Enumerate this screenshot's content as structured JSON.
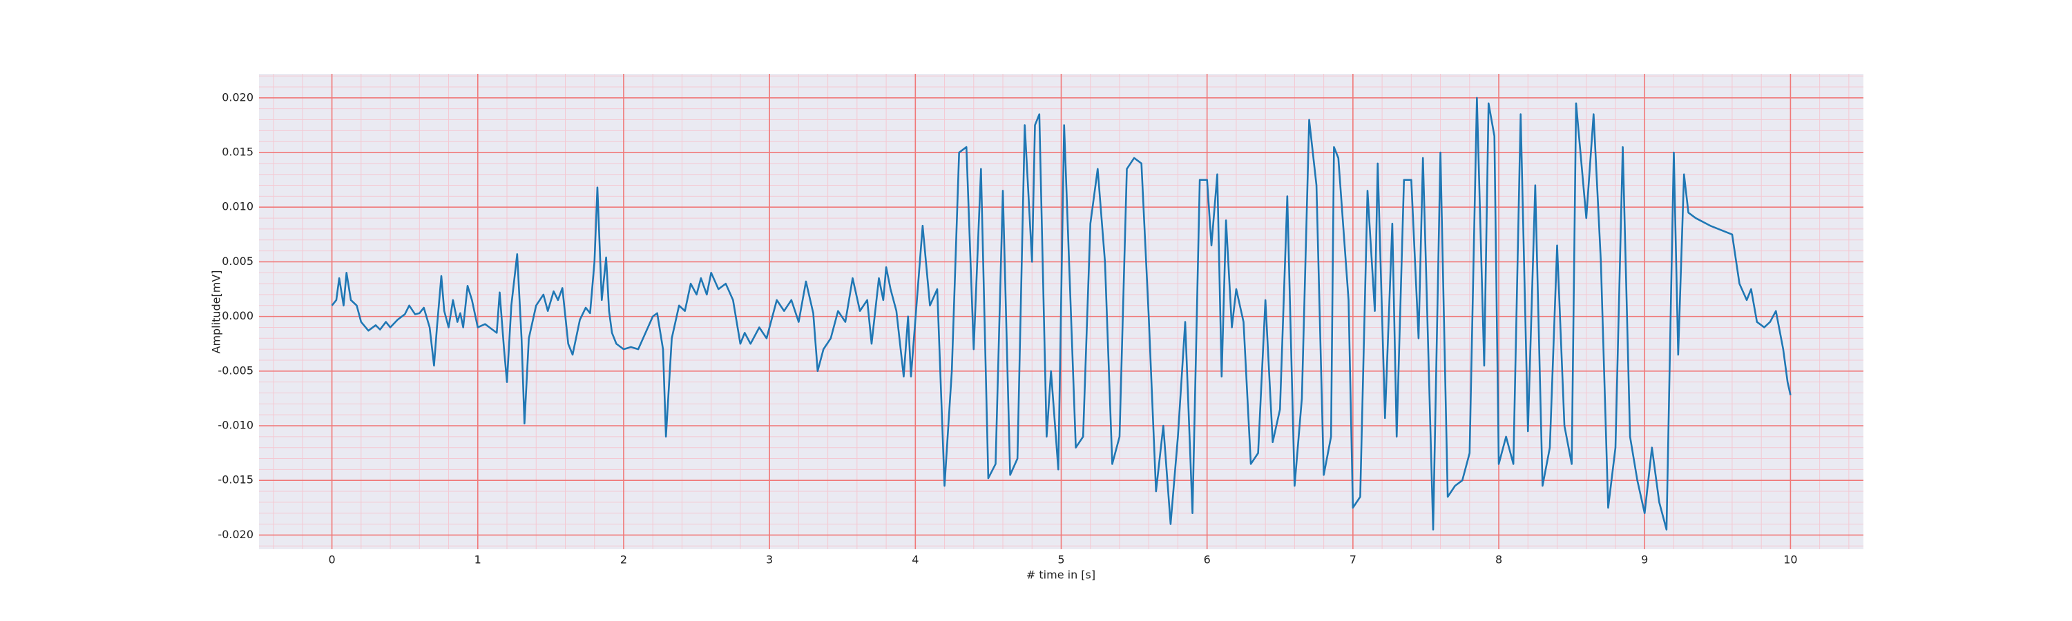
{
  "chart_data": {
    "type": "line",
    "xlabel": "# time in [s]",
    "ylabel": "Amplitude[mV]",
    "background": "#eaeaf2",
    "grid": true,
    "grid_color": "#f07878",
    "minor_grid": true,
    "minor_grid_color": "#f4c8d2",
    "xlim": [
      -0.5,
      10.5
    ],
    "ylim": [
      -0.0213,
      0.0222
    ],
    "xticks": [
      0,
      1,
      2,
      3,
      4,
      5,
      6,
      7,
      8,
      9,
      10
    ],
    "yticks": [
      {
        "value": -0.02,
        "label": "-0.020"
      },
      {
        "value": -0.015,
        "label": "-0.015"
      },
      {
        "value": -0.01,
        "label": "-0.010"
      },
      {
        "value": -0.005,
        "label": "-0.005"
      },
      {
        "value": 0,
        "label": "0.000"
      },
      {
        "value": 0.005,
        "label": "0.005"
      },
      {
        "value": 0.01,
        "label": "0.010"
      },
      {
        "value": 0.015,
        "label": "0.015"
      },
      {
        "value": 0.02,
        "label": "0.020"
      }
    ],
    "xminorticks": [
      -0.4,
      -0.2,
      0.2,
      0.4,
      0.6,
      0.8,
      1.2,
      1.4,
      1.6,
      1.8,
      2.2,
      2.4,
      2.6,
      2.8,
      3.2,
      3.4,
      3.6,
      3.8,
      4.2,
      4.4,
      4.6,
      4.8,
      5.2,
      5.4,
      5.6,
      5.8,
      6.2,
      6.4,
      6.6,
      6.8,
      7.2,
      7.4,
      7.6,
      7.8,
      8.2,
      8.4,
      8.6,
      8.8,
      9.2,
      9.4,
      9.6,
      9.8,
      10.2,
      10.4
    ],
    "yminorticks": [
      -0.021,
      -0.019,
      -0.018,
      -0.017,
      -0.016,
      -0.014,
      -0.013,
      -0.012,
      -0.011,
      -0.009,
      -0.008,
      -0.007,
      -0.006,
      -0.004,
      -0.003,
      -0.002,
      -0.001,
      0.001,
      0.002,
      0.003,
      0.004,
      0.006,
      0.007,
      0.008,
      0.009,
      0.011,
      0.012,
      0.013,
      0.014,
      0.016,
      0.017,
      0.018,
      0.019,
      0.021,
      0.022
    ],
    "series": [
      {
        "color": "#1f77b4",
        "x": [
          0,
          0.03,
          0.05,
          0.08,
          0.1,
          0.13,
          0.17,
          0.2,
          0.25,
          0.3,
          0.33,
          0.37,
          0.4,
          0.45,
          0.5,
          0.53,
          0.57,
          0.6,
          0.63,
          0.67,
          0.7,
          0.72,
          0.75,
          0.77,
          0.8,
          0.83,
          0.86,
          0.88,
          0.9,
          0.93,
          0.96,
          1.0,
          1.05,
          1.1,
          1.13,
          1.15,
          1.18,
          1.2,
          1.23,
          1.27,
          1.3,
          1.32,
          1.35,
          1.4,
          1.45,
          1.48,
          1.52,
          1.55,
          1.58,
          1.62,
          1.65,
          1.7,
          1.74,
          1.77,
          1.8,
          1.82,
          1.85,
          1.88,
          1.9,
          1.92,
          1.95,
          2.0,
          2.05,
          2.1,
          2.15,
          2.2,
          2.23,
          2.27,
          2.29,
          2.33,
          2.38,
          2.42,
          2.46,
          2.5,
          2.53,
          2.57,
          2.6,
          2.65,
          2.7,
          2.75,
          2.8,
          2.83,
          2.87,
          2.93,
          2.98,
          3.05,
          3.1,
          3.15,
          3.2,
          3.25,
          3.3,
          3.33,
          3.37,
          3.42,
          3.47,
          3.52,
          3.57,
          3.62,
          3.67,
          3.7,
          3.75,
          3.78,
          3.8,
          3.83,
          3.87,
          3.92,
          3.95,
          3.97,
          4.05,
          4.1,
          4.15,
          4.2,
          4.25,
          4.3,
          4.35,
          4.4,
          4.45,
          4.5,
          4.55,
          4.6,
          4.65,
          4.7,
          4.75,
          4.8,
          4.82,
          4.85,
          4.9,
          4.93,
          4.98,
          5.02,
          5.1,
          5.15,
          5.2,
          5.25,
          5.3,
          5.35,
          5.4,
          5.45,
          5.5,
          5.55,
          5.6,
          5.65,
          5.7,
          5.75,
          5.8,
          5.85,
          5.9,
          5.95,
          6.0,
          6.03,
          6.07,
          6.1,
          6.13,
          6.17,
          6.2,
          6.25,
          6.3,
          6.35,
          6.4,
          6.45,
          6.5,
          6.55,
          6.6,
          6.65,
          6.7,
          6.75,
          6.8,
          6.85,
          6.87,
          6.9,
          6.97,
          7.0,
          7.05,
          7.1,
          7.15,
          7.17,
          7.22,
          7.27,
          7.3,
          7.35,
          7.4,
          7.45,
          7.48,
          7.5,
          7.55,
          7.6,
          7.65,
          7.7,
          7.75,
          7.8,
          7.85,
          7.9,
          7.93,
          7.97,
          8.0,
          8.05,
          8.1,
          8.15,
          8.2,
          8.25,
          8.3,
          8.35,
          8.4,
          8.45,
          8.5,
          8.53,
          8.6,
          8.65,
          8.7,
          8.75,
          8.8,
          8.85,
          8.9,
          8.95,
          9.0,
          9.05,
          9.1,
          9.15,
          9.2,
          9.23,
          9.27,
          9.3,
          9.35,
          9.45,
          9.6,
          9.65,
          9.7,
          9.73,
          9.77,
          9.82,
          9.86,
          9.9,
          9.95,
          9.98,
          10.0
        ],
        "values": [
          0.001,
          0.0015,
          0.0035,
          0.001,
          0.004,
          0.0015,
          0.001,
          -0.0005,
          -0.0013,
          -0.0008,
          -0.0012,
          -0.0005,
          -0.001,
          -0.0003,
          0.0002,
          0.001,
          0.0002,
          0.0003,
          0.0008,
          -0.001,
          -0.0045,
          -0.001,
          0.0037,
          0.0005,
          -0.001,
          0.0015,
          -0.0005,
          0.0003,
          -0.001,
          0.0028,
          0.0015,
          -0.001,
          -0.0007,
          -0.0012,
          -0.0015,
          0.0022,
          -0.003,
          -0.006,
          0.001,
          0.0057,
          -0.002,
          -0.0098,
          -0.002,
          0.001,
          0.002,
          0.0005,
          0.0023,
          0.0015,
          0.0026,
          -0.0025,
          -0.0035,
          -0.0003,
          0.0008,
          0.0003,
          0.005,
          0.0118,
          0.0015,
          0.0054,
          0.0005,
          -0.0015,
          -0.0025,
          -0.003,
          -0.0028,
          -0.003,
          -0.0015,
          0.0,
          0.0003,
          -0.003,
          -0.011,
          -0.002,
          0.001,
          0.0005,
          0.003,
          0.002,
          0.0035,
          0.002,
          0.004,
          0.0025,
          0.003,
          0.0015,
          -0.0025,
          -0.0015,
          -0.0025,
          -0.001,
          -0.002,
          0.0015,
          0.0005,
          0.0015,
          -0.0005,
          0.0032,
          0.0003,
          -0.005,
          -0.003,
          -0.002,
          0.0005,
          -0.0005,
          0.0035,
          0.0005,
          0.0015,
          -0.0025,
          0.0035,
          0.0015,
          0.0045,
          0.0025,
          0.0005,
          -0.0055,
          0.0,
          -0.0055,
          0.0083,
          0.001,
          0.0025,
          -0.0155,
          -0.005,
          0.015,
          0.0155,
          -0.003,
          0.0135,
          -0.0148,
          -0.0135,
          0.0115,
          -0.0145,
          -0.013,
          0.0175,
          0.005,
          0.0175,
          0.0185,
          -0.011,
          -0.005,
          -0.014,
          0.0175,
          -0.012,
          -0.011,
          0.0085,
          0.0135,
          0.005,
          -0.0135,
          -0.011,
          0.0135,
          0.0145,
          0.014,
          0.0,
          -0.016,
          -0.01,
          -0.019,
          -0.011,
          -0.0005,
          -0.018,
          0.0125,
          0.0125,
          0.0065,
          0.013,
          -0.0055,
          0.0088,
          -0.001,
          0.0025,
          -0.0005,
          -0.0135,
          -0.0125,
          0.0015,
          -0.0115,
          -0.0085,
          0.011,
          -0.0155,
          -0.0075,
          0.018,
          0.012,
          -0.0145,
          -0.011,
          0.0155,
          0.0145,
          0.0015,
          -0.0175,
          -0.0165,
          0.0115,
          0.0005,
          0.014,
          -0.0093,
          0.0085,
          -0.011,
          0.0125,
          0.0125,
          -0.002,
          0.0145,
          0.005,
          -0.0195,
          0.015,
          -0.0165,
          -0.0155,
          -0.015,
          -0.0125,
          0.02,
          -0.0045,
          0.0195,
          0.0165,
          -0.0135,
          -0.011,
          -0.0135,
          0.0185,
          -0.0105,
          0.012,
          -0.0155,
          -0.012,
          0.0065,
          -0.01,
          -0.0135,
          0.0195,
          0.009,
          0.0185,
          0.005,
          -0.0175,
          -0.012,
          0.0155,
          -0.011,
          -0.015,
          -0.018,
          -0.012,
          -0.017,
          -0.0195,
          0.015,
          -0.0035,
          0.013,
          0.0095,
          0.009,
          0.0083,
          0.0075,
          0.003,
          0.0015,
          0.0025,
          -0.0005,
          -0.001,
          -0.0005,
          0.0005,
          -0.003,
          -0.006,
          -0.0072
        ]
      }
    ]
  }
}
